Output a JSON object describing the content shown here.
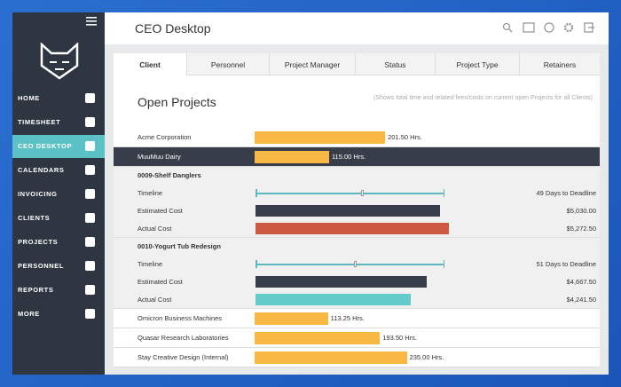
{
  "header": {
    "title": "CEO Desktop"
  },
  "sidebar": {
    "items": [
      "HOME",
      "TIMESHEET",
      "CEO DESKTOP",
      "CALENDARS",
      "INVOICING",
      "CLIENTS",
      "PROJECTS",
      "PERSONNEL",
      "REPORTS",
      "MORE"
    ]
  },
  "tabs": [
    "Client",
    "Personnel",
    "Project Manager",
    "Status",
    "Project Type",
    "Retainers"
  ],
  "content": {
    "title": "Open Projects",
    "note": "(Shows total time and related fees/costs on current open Projects for all Clients)",
    "projects": [
      {
        "name": "Acme Corporation",
        "hours": 201.5,
        "hours_label": "201.50 Hrs."
      },
      {
        "name": "MuuMuu Dairy",
        "hours": 115,
        "hours_label": "115.00 Hrs.",
        "details": [
          {
            "name": "0009-Shelf Danglers",
            "rows": [
              {
                "label": "Timeline",
                "text": "49 Days to Deadline"
              },
              {
                "label": "Estimated Cost",
                "value": 5030,
                "value_label": "$5,030.00",
                "color": "#363d48"
              },
              {
                "label": "Actual Cost",
                "value": 5272.5,
                "value_label": "$5,272.50",
                "color": "#cb5a41"
              }
            ]
          },
          {
            "name": "0010-Yogurt Tub Redesign",
            "rows": [
              {
                "label": "Timeline",
                "text": "51 Days to Deadline"
              },
              {
                "label": "Estimated Cost",
                "value": 4667.5,
                "value_label": "$4,667.50",
                "color": "#363d48"
              },
              {
                "label": "Actual Cost",
                "value": 4241.5,
                "value_label": "$4,241.50",
                "color": "#63cbc9"
              }
            ]
          }
        ]
      },
      {
        "name": "Omicron Business Machines",
        "hours": 113.25,
        "hours_label": "113.25 Hrs."
      },
      {
        "name": "Quasar Research Laboratories",
        "hours": 193.5,
        "hours_label": "193.50 Hrs."
      },
      {
        "name": "Stay Creative Design (Internal)",
        "hours": 235,
        "hours_label": "235.00 Hrs."
      }
    ]
  }
}
